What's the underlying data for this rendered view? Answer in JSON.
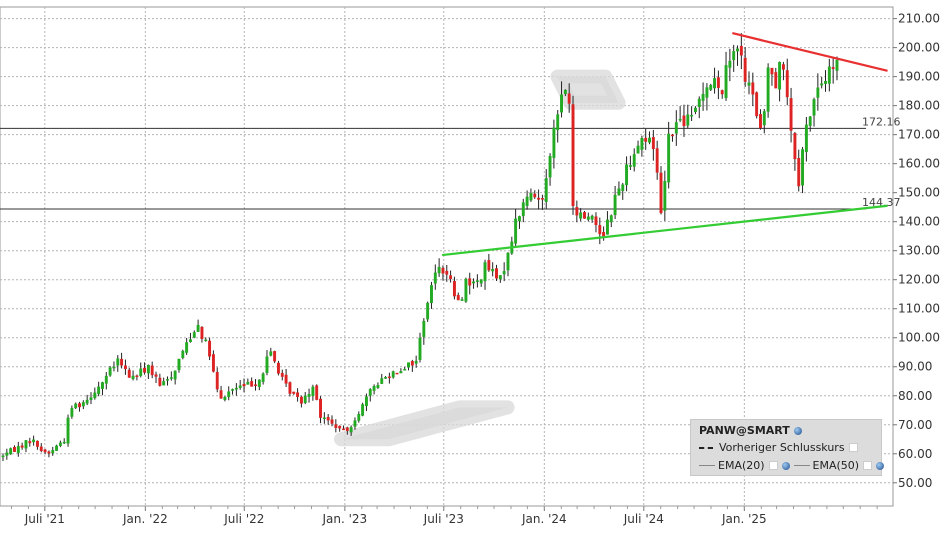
{
  "chart_data": {
    "type": "candlestick",
    "symbol": "PANW@SMART",
    "ylim": [
      42,
      214
    ],
    "y_ticks": [
      "210.00",
      "200.00",
      "190.00",
      "180.00",
      "170.00",
      "160.00",
      "150.00",
      "140.00",
      "130.00",
      "120.00",
      "110.00",
      "100.00",
      "90.00",
      "80.00",
      "70.00",
      "60.00",
      "50.00"
    ],
    "x_ticks": [
      "Juli '21",
      "Jan. '22",
      "Juli '22",
      "Jan. '23",
      "Juli '23",
      "Jan. '24",
      "Juli '24",
      "Jan. '25"
    ],
    "x_tick_dates": [
      "2021-07-01",
      "2022-01-01",
      "2022-07-01",
      "2023-01-01",
      "2023-07-01",
      "2024-01-01",
      "2024-07-01",
      "2025-01-01"
    ],
    "x_start": "2021-04-10",
    "x_end": "2025-09-30",
    "grid": true,
    "horizontal_levels": [
      {
        "value": 172.16,
        "label": "172.16"
      },
      {
        "value": 144.37,
        "label": "144.37"
      }
    ],
    "trendlines": [
      {
        "color": "#e83030",
        "from": [
          "2024-12-10",
          205
        ],
        "to": [
          "2025-09-20",
          192
        ]
      },
      {
        "color": "#33cc33",
        "from": [
          "2023-06-28",
          128.5
        ],
        "to": [
          "2025-09-20",
          145.5
        ]
      }
    ],
    "channel_arrow": [
      [
        "2022-12-25",
        65
      ],
      [
        "2023-07-30",
        76
      ],
      [
        "2024-01-25",
        190
      ],
      [
        "2024-02-18",
        181
      ]
    ],
    "price_path": [
      [
        "2021-04-12",
        59
      ],
      [
        "2021-05-15",
        62
      ],
      [
        "2021-06-10",
        65
      ],
      [
        "2021-06-30",
        61
      ],
      [
        "2021-07-10",
        60
      ],
      [
        "2021-08-10",
        65
      ],
      [
        "2021-08-20",
        76
      ],
      [
        "2021-09-15",
        78
      ],
      [
        "2021-10-15",
        84
      ],
      [
        "2021-11-15",
        92
      ],
      [
        "2021-12-10",
        86
      ],
      [
        "2022-01-10",
        90
      ],
      [
        "2022-02-01",
        83
      ],
      [
        "2022-02-25",
        88
      ],
      [
        "2022-03-15",
        96
      ],
      [
        "2022-04-10",
        105
      ],
      [
        "2022-05-01",
        95
      ],
      [
        "2022-05-20",
        78
      ],
      [
        "2022-06-10",
        82
      ],
      [
        "2022-07-15",
        84
      ],
      [
        "2022-08-05",
        86
      ],
      [
        "2022-08-20",
        96
      ],
      [
        "2022-09-15",
        84
      ],
      [
        "2022-10-15",
        78
      ],
      [
        "2022-11-10",
        84
      ],
      [
        "2022-11-20",
        73
      ],
      [
        "2022-12-15",
        70
      ],
      [
        "2023-01-06",
        67
      ],
      [
        "2023-02-01",
        75
      ],
      [
        "2023-03-01",
        84
      ],
      [
        "2023-04-01",
        88
      ],
      [
        "2023-05-15",
        92
      ],
      [
        "2023-06-01",
        110
      ],
      [
        "2023-06-25",
        126
      ],
      [
        "2023-07-15",
        120
      ],
      [
        "2023-08-01",
        111
      ],
      [
        "2023-08-15",
        120
      ],
      [
        "2023-09-01",
        118
      ],
      [
        "2023-09-20",
        125
      ],
      [
        "2023-10-15",
        119
      ],
      [
        "2023-11-01",
        131
      ],
      [
        "2023-11-15",
        141
      ],
      [
        "2023-12-05",
        149
      ],
      [
        "2024-01-01",
        148
      ],
      [
        "2024-01-15",
        165
      ],
      [
        "2024-02-10",
        187
      ],
      [
        "2024-02-21",
        180
      ],
      [
        "2024-02-23",
        144
      ],
      [
        "2024-03-10",
        142
      ],
      [
        "2024-04-01",
        142
      ],
      [
        "2024-04-20",
        135
      ],
      [
        "2024-05-15",
        149
      ],
      [
        "2024-06-15",
        164
      ],
      [
        "2024-07-01",
        169
      ],
      [
        "2024-07-25",
        166
      ],
      [
        "2024-08-05",
        143
      ],
      [
        "2024-08-20",
        171
      ],
      [
        "2024-09-10",
        175
      ],
      [
        "2024-10-01",
        175
      ],
      [
        "2024-10-20",
        186
      ],
      [
        "2024-11-10",
        189
      ],
      [
        "2024-11-20",
        183
      ],
      [
        "2024-12-10",
        197
      ],
      [
        "2024-12-20",
        204
      ],
      [
        "2025-01-05",
        190
      ],
      [
        "2025-01-25",
        180
      ],
      [
        "2025-02-05",
        168
      ],
      [
        "2025-02-20",
        198
      ],
      [
        "2025-03-01",
        186
      ],
      [
        "2025-03-10",
        197
      ],
      [
        "2025-03-25",
        182
      ],
      [
        "2025-04-05",
        164
      ],
      [
        "2025-04-12",
        148
      ],
      [
        "2025-04-25",
        170
      ],
      [
        "2025-05-15",
        185
      ],
      [
        "2025-06-05",
        190
      ],
      [
        "2025-06-20",
        194
      ]
    ]
  },
  "legend": {
    "title": "PANW@SMART",
    "prev_close": "Vorheriger Schlusskurs",
    "ema20": "EMA(20)",
    "ema50": "EMA(50)"
  }
}
